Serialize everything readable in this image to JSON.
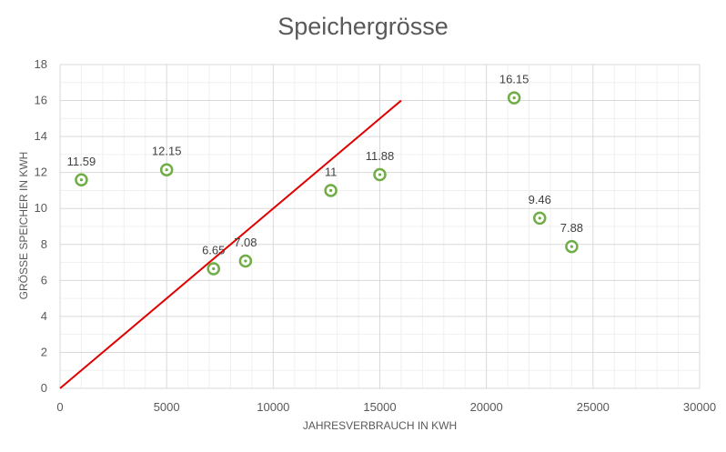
{
  "chart_data": {
    "type": "scatter",
    "title": "Speichergrösse",
    "xlabel": "JAHRESVERBRAUCH IN KWH",
    "ylabel": "GRÖSSE SPEICHER IN KWH",
    "xlim": [
      0,
      30000
    ],
    "ylim": [
      0,
      18
    ],
    "xticks": [
      0,
      5000,
      10000,
      15000,
      20000,
      25000,
      30000
    ],
    "yticks": [
      0,
      2,
      4,
      6,
      8,
      10,
      12,
      14,
      16,
      18
    ],
    "grid": true,
    "legend": "none",
    "series": [
      {
        "points": [
          {
            "x": 1000,
            "y": 11.59,
            "label": "11.59"
          },
          {
            "x": 5000,
            "y": 12.15,
            "label": "12.15"
          },
          {
            "x": 7200,
            "y": 6.65,
            "label": "6.65"
          },
          {
            "x": 8700,
            "y": 7.08,
            "label": "7.08"
          },
          {
            "x": 12700,
            "y": 11,
            "label": "11"
          },
          {
            "x": 15000,
            "y": 11.88,
            "label": "11.88"
          },
          {
            "x": 21300,
            "y": 16.15,
            "label": "16.15"
          },
          {
            "x": 22500,
            "y": 9.46,
            "label": "9.46"
          },
          {
            "x": 24000,
            "y": 7.88,
            "label": "7.88"
          }
        ],
        "color": "#70ad47"
      }
    ],
    "reference_line": {
      "x": [
        0,
        16000
      ],
      "y": [
        0,
        16
      ],
      "color": "#e00000"
    },
    "colors": {
      "grid_major": "#d9d9d9",
      "grid_minor": "#f0f0f0",
      "text": "#595959",
      "label": "#404040"
    }
  }
}
